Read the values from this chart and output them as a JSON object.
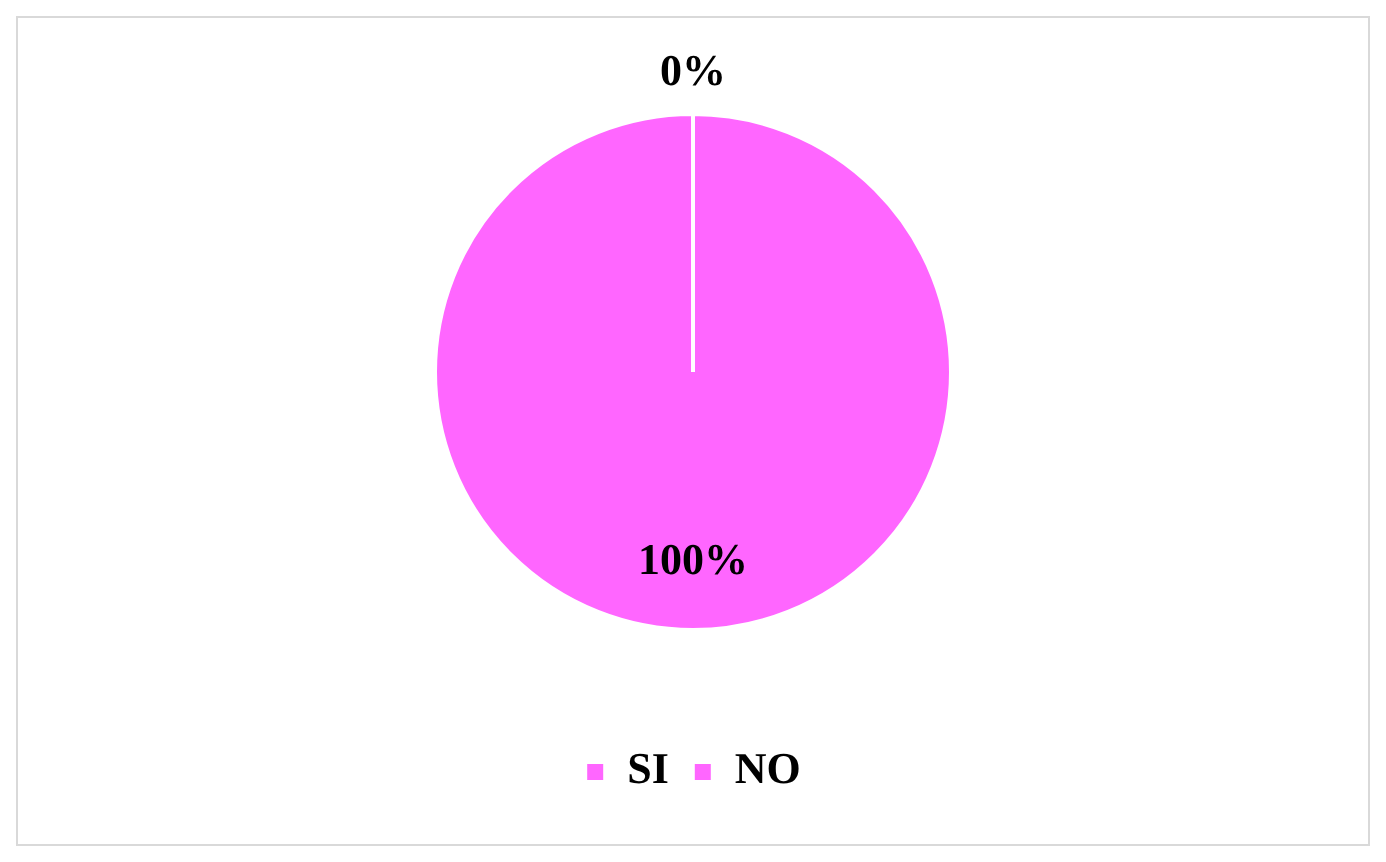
{
  "chart_data": {
    "type": "pie",
    "categories": [
      "SI",
      "NO"
    ],
    "values": [
      0,
      100
    ],
    "colors": [
      "#ff66ff",
      "#ff66ff"
    ],
    "value_labels": [
      "0%",
      "100%"
    ],
    "legend": "bottom"
  }
}
